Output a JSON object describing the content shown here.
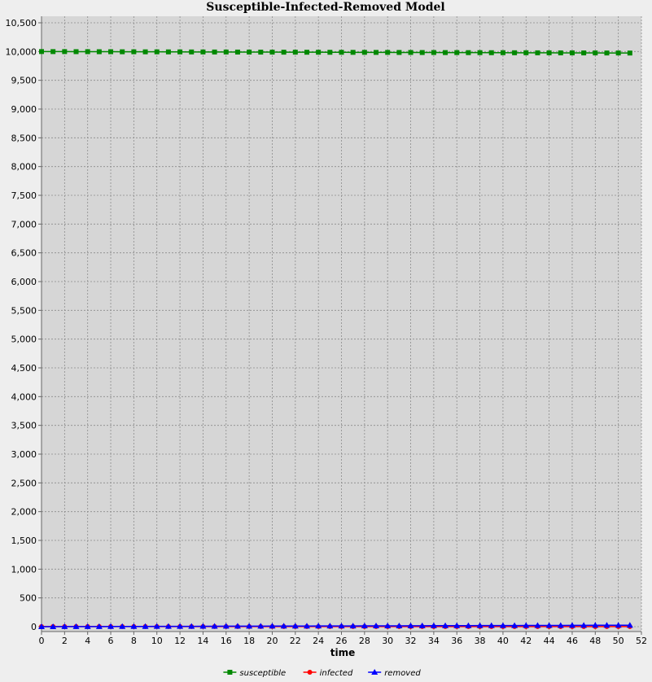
{
  "chart_data": {
    "type": "line",
    "title": "Susceptible-Infected-Removed Model",
    "xlabel": "time",
    "ylabel": "",
    "xlim": [
      0,
      52
    ],
    "ylim": [
      0,
      10500
    ],
    "x_ticks": [
      0,
      2,
      4,
      6,
      8,
      10,
      12,
      14,
      16,
      18,
      20,
      22,
      24,
      26,
      28,
      30,
      32,
      34,
      36,
      38,
      40,
      42,
      44,
      46,
      48,
      50,
      52
    ],
    "x_tick_labels": [
      "0",
      "2",
      "4",
      "6",
      "8",
      "10",
      "12",
      "14",
      "16",
      "18",
      "20",
      "22",
      "24",
      "26",
      "28",
      "30",
      "32",
      "34",
      "36",
      "38",
      "40",
      "42",
      "44",
      "46",
      "48",
      "50",
      "52"
    ],
    "y_ticks": [
      0,
      500,
      1000,
      1500,
      2000,
      2500,
      3000,
      3500,
      4000,
      4500,
      5000,
      5500,
      6000,
      6500,
      7000,
      7500,
      8000,
      8500,
      9000,
      9500,
      10000,
      10500
    ],
    "y_tick_labels": [
      "0",
      "500",
      "1,000",
      "1,500",
      "2,000",
      "2,500",
      "3,000",
      "3,500",
      "4,000",
      "4,500",
      "5,000",
      "5,500",
      "6,000",
      "6,500",
      "7,000",
      "7,500",
      "8,000",
      "8,500",
      "9,000",
      "9,500",
      "10,000",
      "10,500"
    ],
    "grid": true,
    "legend_position": "bottom",
    "x": [
      0,
      1,
      2,
      3,
      4,
      5,
      6,
      7,
      8,
      9,
      10,
      11,
      12,
      13,
      14,
      15,
      16,
      17,
      18,
      19,
      20,
      21,
      22,
      23,
      24,
      25,
      26,
      27,
      28,
      29,
      30,
      31,
      32,
      33,
      34,
      35,
      36,
      37,
      38,
      39,
      40,
      41,
      42,
      43,
      44,
      45,
      46,
      47,
      48,
      49,
      50,
      51
    ],
    "series": [
      {
        "name": "susceptible",
        "color": "#008800",
        "marker": "square",
        "values": [
          10000,
          9999,
          9999,
          9998,
          9998,
          9997,
          9997,
          9996,
          9996,
          9995,
          9995,
          9994,
          9994,
          9993,
          9993,
          9992,
          9992,
          9991,
          9991,
          9990,
          9990,
          9989,
          9989,
          9988,
          9988,
          9987,
          9987,
          9986,
          9986,
          9985,
          9985,
          9984,
          9984,
          9983,
          9983,
          9982,
          9982,
          9981,
          9981,
          9980,
          9980,
          9979,
          9979,
          9978,
          9978,
          9977,
          9977,
          9976,
          9976,
          9975,
          9975,
          9974
        ]
      },
      {
        "name": "infected",
        "color": "#ff0000",
        "marker": "circle",
        "values": [
          1,
          1,
          1,
          1,
          1,
          1,
          1,
          1,
          1,
          1,
          1,
          1,
          1,
          1,
          1,
          1,
          1,
          1,
          1,
          1,
          1,
          1,
          1,
          1,
          1,
          1,
          1,
          1,
          1,
          1,
          1,
          1,
          1,
          1,
          1,
          1,
          1,
          1,
          1,
          1,
          1,
          1,
          1,
          1,
          1,
          1,
          1,
          1,
          1,
          1,
          1,
          1
        ]
      },
      {
        "name": "removed",
        "color": "#0000ff",
        "marker": "triangle",
        "values": [
          0,
          0,
          1,
          1,
          2,
          2,
          3,
          3,
          4,
          4,
          5,
          5,
          6,
          6,
          7,
          7,
          8,
          8,
          9,
          9,
          10,
          10,
          11,
          11,
          12,
          12,
          13,
          13,
          14,
          14,
          15,
          15,
          16,
          16,
          17,
          17,
          18,
          18,
          19,
          19,
          20,
          20,
          21,
          21,
          22,
          22,
          23,
          23,
          24,
          24,
          25,
          25
        ]
      }
    ]
  }
}
